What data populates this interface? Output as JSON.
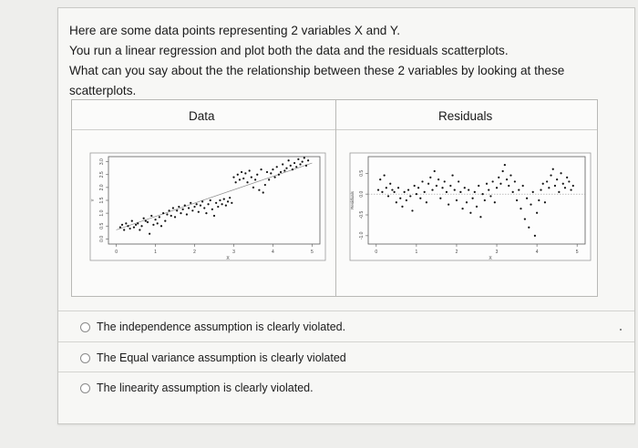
{
  "question": {
    "line1": "Here are some data points representing 2 variables X and Y.",
    "line2": "You run a linear regression and plot both the data and the residuals scatterplots.",
    "line3": "What can you say about the the relationship between these 2 variables by looking at these",
    "line4": "scatterplots."
  },
  "chart_data": [
    {
      "type": "scatter",
      "title": "Data",
      "xlabel": "X",
      "ylabel": "Y",
      "xlim": [
        -0.2,
        5.2
      ],
      "ylim": [
        -0.2,
        3.2
      ],
      "x_ticks": [
        "0",
        "1",
        "2",
        "3",
        "4",
        "5"
      ],
      "y_ticks": [
        "0.0",
        "0.5",
        "1.0",
        "1.5",
        "2.0",
        "2.5",
        "3.0"
      ],
      "regression_line": {
        "x": [
          0,
          5
        ],
        "y": [
          0.35,
          2.95
        ]
      },
      "points": {
        "x": [
          0.1,
          0.15,
          0.2,
          0.25,
          0.3,
          0.35,
          0.4,
          0.45,
          0.5,
          0.55,
          0.6,
          0.65,
          0.7,
          0.75,
          0.8,
          0.85,
          0.9,
          0.95,
          1.0,
          1.05,
          1.1,
          1.15,
          1.2,
          1.25,
          1.3,
          1.35,
          1.4,
          1.45,
          1.5,
          1.55,
          1.6,
          1.65,
          1.7,
          1.75,
          1.8,
          1.85,
          1.9,
          1.95,
          2.0,
          2.05,
          2.1,
          2.15,
          2.2,
          2.25,
          2.3,
          2.35,
          2.4,
          2.45,
          2.5,
          2.55,
          2.6,
          2.65,
          2.7,
          2.75,
          2.8,
          2.85,
          2.9,
          2.95,
          3.0,
          3.05,
          3.1,
          3.15,
          3.2,
          3.25,
          3.3,
          3.35,
          3.4,
          3.45,
          3.5,
          3.55,
          3.6,
          3.65,
          3.7,
          3.75,
          3.8,
          3.85,
          3.9,
          3.95,
          4.0,
          4.05,
          4.1,
          4.15,
          4.2,
          4.25,
          4.3,
          4.35,
          4.4,
          4.45,
          4.5,
          4.55,
          4.6,
          4.65,
          4.7,
          4.75,
          4.8,
          4.85,
          4.9
        ],
        "y": [
          0.45,
          0.55,
          0.35,
          0.6,
          0.5,
          0.4,
          0.7,
          0.45,
          0.55,
          0.6,
          0.35,
          0.5,
          0.8,
          0.7,
          0.65,
          0.2,
          0.9,
          0.55,
          0.75,
          0.6,
          0.85,
          0.5,
          1.0,
          0.7,
          0.95,
          1.1,
          0.9,
          1.2,
          0.85,
          1.1,
          1.25,
          1.0,
          1.15,
          1.3,
          0.95,
          1.2,
          1.4,
          1.1,
          1.25,
          1.35,
          1.05,
          1.3,
          1.45,
          1.2,
          1.0,
          1.35,
          1.5,
          1.15,
          0.9,
          1.4,
          1.25,
          1.5,
          1.35,
          1.55,
          1.3,
          1.45,
          1.6,
          1.4,
          2.4,
          2.2,
          2.5,
          2.3,
          2.6,
          2.35,
          2.55,
          2.2,
          2.65,
          2.4,
          2.0,
          2.3,
          2.5,
          1.9,
          2.7,
          1.8,
          2.1,
          2.6,
          2.3,
          2.55,
          2.7,
          2.4,
          2.8,
          2.5,
          2.6,
          2.9,
          2.65,
          2.75,
          3.05,
          2.85,
          2.7,
          2.95,
          2.8,
          3.1,
          2.9,
          3.0,
          3.15,
          2.85,
          3.05
        ]
      }
    },
    {
      "type": "scatter",
      "title": "Residuals",
      "xlabel": "X",
      "ylabel": "Residuals",
      "xlim": [
        -0.2,
        5.2
      ],
      "ylim": [
        -1.2,
        0.9
      ],
      "x_ticks": [
        "0",
        "1",
        "2",
        "3",
        "4",
        "5"
      ],
      "y_ticks": [
        "-1.0",
        "-0.5",
        "0.0",
        "0.5"
      ],
      "reference_line_y": 0,
      "points": {
        "x": [
          0.05,
          0.1,
          0.15,
          0.2,
          0.25,
          0.3,
          0.35,
          0.4,
          0.45,
          0.5,
          0.55,
          0.6,
          0.65,
          0.7,
          0.75,
          0.8,
          0.85,
          0.9,
          0.95,
          1.0,
          1.05,
          1.1,
          1.15,
          1.2,
          1.25,
          1.3,
          1.35,
          1.4,
          1.45,
          1.5,
          1.55,
          1.6,
          1.65,
          1.7,
          1.75,
          1.8,
          1.85,
          1.9,
          1.95,
          2.0,
          2.05,
          2.1,
          2.15,
          2.2,
          2.25,
          2.3,
          2.35,
          2.4,
          2.45,
          2.5,
          2.55,
          2.6,
          2.65,
          2.7,
          2.75,
          2.8,
          2.85,
          2.9,
          2.95,
          3.0,
          3.05,
          3.1,
          3.15,
          3.2,
          3.25,
          3.3,
          3.35,
          3.4,
          3.45,
          3.5,
          3.55,
          3.6,
          3.65,
          3.7,
          3.75,
          3.8,
          3.85,
          3.9,
          3.95,
          4.0,
          4.05,
          4.1,
          4.15,
          4.2,
          4.25,
          4.3,
          4.35,
          4.4,
          4.45,
          4.5,
          4.55,
          4.6,
          4.65,
          4.7,
          4.75,
          4.8,
          4.85,
          4.9
        ],
        "y": [
          0.1,
          0.35,
          0.05,
          0.45,
          0.15,
          -0.05,
          0.25,
          0.1,
          0.05,
          -0.2,
          0.15,
          -0.1,
          -0.3,
          0.05,
          -0.15,
          0.1,
          -0.05,
          -0.4,
          0.2,
          0.0,
          0.15,
          -0.1,
          0.3,
          0.05,
          -0.2,
          0.25,
          0.4,
          0.1,
          0.55,
          0.2,
          0.35,
          -0.1,
          0.15,
          0.3,
          0.05,
          -0.25,
          0.2,
          0.45,
          0.1,
          -0.15,
          0.3,
          0.05,
          -0.35,
          0.15,
          -0.2,
          0.1,
          -0.45,
          -0.1,
          0.05,
          -0.3,
          0.2,
          -0.55,
          0.0,
          -0.15,
          0.25,
          0.1,
          -0.05,
          0.3,
          -0.2,
          0.15,
          0.4,
          0.25,
          0.55,
          0.7,
          0.35,
          0.2,
          0.45,
          0.05,
          0.3,
          -0.15,
          0.1,
          -0.35,
          0.2,
          -0.6,
          -0.1,
          -0.8,
          -0.25,
          0.05,
          -1.0,
          -0.45,
          -0.15,
          0.1,
          0.25,
          -0.2,
          0.3,
          0.15,
          0.45,
          0.6,
          0.2,
          0.35,
          0.05,
          0.5,
          0.25,
          0.15,
          0.4,
          0.3,
          0.1,
          0.2
        ]
      }
    }
  ],
  "options": [
    {
      "label": "The independence assumption is clearly violated."
    },
    {
      "label": "The Equal variance assumption is clearly violated"
    },
    {
      "label": "The linearity assumption is clearly violated."
    }
  ]
}
